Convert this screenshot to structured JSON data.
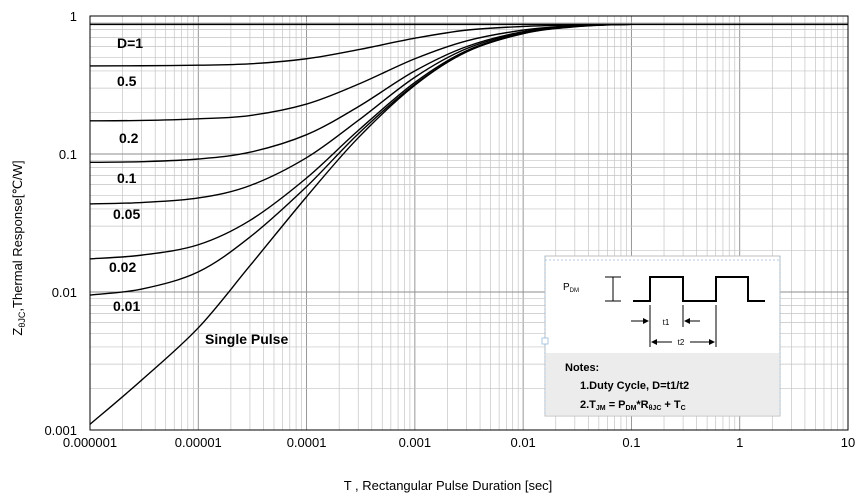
{
  "chart_data": {
    "type": "line",
    "x_scale": "log",
    "y_scale": "log",
    "xlim": [
      1e-06,
      10
    ],
    "ylim": [
      0.001,
      1
    ],
    "grid": true,
    "xlabel": "T , Rectangular Pulse Duration [sec]",
    "ylabel_prefix": "Z",
    "ylabel_subscript": "θJC",
    "ylabel_suffix": ",Thermal Response[℃/W]",
    "x_ticks": [
      {
        "value": 1e-06,
        "label": "0.000001"
      },
      {
        "value": 1e-05,
        "label": "0.00001"
      },
      {
        "value": 0.0001,
        "label": "0.0001"
      },
      {
        "value": 0.001,
        "label": "0.001"
      },
      {
        "value": 0.01,
        "label": "0.01"
      },
      {
        "value": 0.1,
        "label": "0.1"
      },
      {
        "value": 1,
        "label": "1"
      },
      {
        "value": 10,
        "label": "10"
      }
    ],
    "y_ticks": [
      {
        "value": 1,
        "label": "1"
      },
      {
        "value": 0.1,
        "label": "0.1"
      },
      {
        "value": 0.01,
        "label": "0.01"
      },
      {
        "value": 0.001,
        "label": "0.001"
      }
    ],
    "steady_state": 0.87,
    "x": [
      1e-06,
      3e-06,
      1e-05,
      3e-05,
      0.0001,
      0.0003,
      0.001,
      0.003,
      0.01,
      0.03,
      0.1,
      1,
      10
    ],
    "series": [
      {
        "name": "D=1",
        "values": [
          0.87,
          0.87,
          0.87,
          0.87,
          0.87,
          0.87,
          0.87,
          0.87,
          0.87,
          0.87,
          0.87,
          0.87,
          0.87
        ]
      },
      {
        "name": "0.5",
        "values": [
          0.435,
          0.436,
          0.44,
          0.45,
          0.49,
          0.57,
          0.69,
          0.79,
          0.84,
          0.86,
          0.87,
          0.87,
          0.87
        ]
      },
      {
        "name": "0.2",
        "values": [
          0.174,
          0.175,
          0.18,
          0.19,
          0.23,
          0.32,
          0.49,
          0.66,
          0.79,
          0.85,
          0.87,
          0.87,
          0.87
        ]
      },
      {
        "name": "0.1",
        "values": [
          0.087,
          0.088,
          0.092,
          0.103,
          0.138,
          0.22,
          0.4,
          0.6,
          0.77,
          0.845,
          0.87,
          0.87,
          0.87
        ]
      },
      {
        "name": "0.05",
        "values": [
          0.0435,
          0.0445,
          0.048,
          0.059,
          0.094,
          0.175,
          0.36,
          0.58,
          0.76,
          0.84,
          0.87,
          0.87,
          0.87
        ]
      },
      {
        "name": "0.02",
        "values": [
          0.0174,
          0.0185,
          0.022,
          0.033,
          0.067,
          0.148,
          0.33,
          0.56,
          0.75,
          0.84,
          0.87,
          0.87,
          0.87
        ]
      },
      {
        "name": "0.01",
        "values": [
          0.0095,
          0.0105,
          0.014,
          0.025,
          0.058,
          0.14,
          0.32,
          0.55,
          0.75,
          0.84,
          0.87,
          0.87,
          0.87
        ]
      },
      {
        "name": "Single Pulse",
        "values": [
          0.0011,
          0.0023,
          0.0055,
          0.0155,
          0.049,
          0.131,
          0.315,
          0.55,
          0.745,
          0.835,
          0.87,
          0.87,
          0.87
        ]
      }
    ]
  },
  "labels": {
    "d1": "D=1",
    "d05": "0.5",
    "d02": "0.2",
    "d01": "0.1",
    "d005": "0.05",
    "d002": "0.02",
    "d001": "0.01",
    "single": "Single Pulse"
  },
  "inset": {
    "pdm_main": "P",
    "pdm_sub": "DM",
    "t1": "t1",
    "t2": "t2",
    "notes_title": "Notes:",
    "note1": "1.Duty  Cycle, D=t1/t2",
    "note2_a": "2.T",
    "note2_a_sub": "JM",
    "note2_b": " = P",
    "note2_b_sub": "DM",
    "note2_c": "*R",
    "note2_c_sub": "θJC",
    "note2_d": " + T",
    "note2_d_sub": "C"
  }
}
